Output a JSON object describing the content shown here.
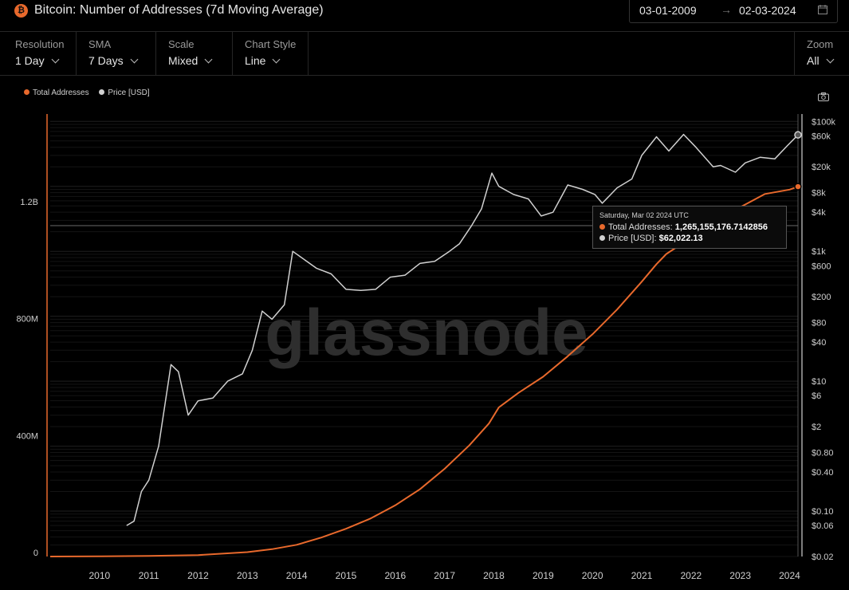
{
  "header": {
    "title": "Bitcoin: Number of Addresses (7d Moving Average)",
    "date_start": "03-01-2009",
    "date_arrow": "→",
    "date_end": "02-03-2024"
  },
  "controls": {
    "resolution": {
      "label": "Resolution",
      "value": "1 Day"
    },
    "sma": {
      "label": "SMA",
      "value": "7 Days"
    },
    "scale": {
      "label": "Scale",
      "value": "Mixed"
    },
    "chart_style": {
      "label": "Chart Style",
      "value": "Line"
    },
    "zoom": {
      "label": "Zoom",
      "value": "All"
    }
  },
  "legend": [
    {
      "label": "Total Addresses",
      "color": "#e8692c"
    },
    {
      "label": "Price [USD]",
      "color": "#d0d0d0"
    }
  ],
  "watermark": "glassnode",
  "tooltip": {
    "date": "Saturday, Mar 02 2024 UTC",
    "series1_label": "Total Addresses:",
    "series1_value": "1,265,155,176.7142856",
    "series2_label": "Price [USD]:",
    "series2_value": "$62,022.13"
  },
  "chart_data": {
    "type": "line",
    "title": "Bitcoin: Number of Addresses (7d Moving Average)",
    "x_ticks": [
      "2010",
      "2011",
      "2012",
      "2013",
      "2014",
      "2015",
      "2016",
      "2017",
      "2018",
      "2019",
      "2020",
      "2021",
      "2022",
      "2023",
      "2024"
    ],
    "xlim": [
      2009.0,
      2024.17
    ],
    "left_axis": {
      "ticks": [
        0,
        400000000,
        800000000,
        1200000000
      ],
      "tick_labels": [
        "0",
        "400M",
        "800M",
        "1.2B"
      ],
      "ylim": [
        0,
        1500000000
      ],
      "scale": "linear"
    },
    "right_axis": {
      "ticks": [
        0.02,
        0.06,
        0.1,
        0.4,
        0.8,
        2,
        6,
        10,
        40,
        80,
        200,
        600,
        1000,
        4000,
        8000,
        20000,
        60000,
        100000
      ],
      "tick_labels": [
        "$0.02",
        "$0.06",
        "$0.10",
        "$0.40",
        "$0.80",
        "$2",
        "$6",
        "$10",
        "$40",
        "$80",
        "$200",
        "$600",
        "$1k",
        "$4k",
        "$8k",
        "$20k",
        "$60k",
        "$100k"
      ],
      "ylim": [
        0.02,
        130000
      ],
      "scale": "log"
    },
    "grid": true,
    "legend_position": "top-left",
    "series": [
      {
        "name": "Total Addresses",
        "axis": "left",
        "color": "#e8692c",
        "x": [
          2009.0,
          2010.0,
          2011.0,
          2012.0,
          2013.0,
          2013.5,
          2014.0,
          2014.5,
          2015.0,
          2015.5,
          2016.0,
          2016.5,
          2017.0,
          2017.5,
          2017.9,
          2018.1,
          2018.5,
          2019.0,
          2019.5,
          2020.0,
          2020.5,
          2021.0,
          2021.3,
          2021.5,
          2022.0,
          2022.5,
          2023.0,
          2023.5,
          2024.0,
          2024.17
        ],
        "y": [
          0,
          600000,
          2000000,
          5000000,
          15000000,
          25000000,
          40000000,
          65000000,
          95000000,
          130000000,
          175000000,
          230000000,
          300000000,
          380000000,
          455000000,
          510000000,
          560000000,
          615000000,
          685000000,
          760000000,
          845000000,
          940000000,
          1000000000,
          1035000000,
          1090000000,
          1145000000,
          1195000000,
          1240000000,
          1255000000,
          1265155176.71
        ]
      },
      {
        "name": "Price [USD]",
        "axis": "right",
        "color": "#d0d0d0",
        "x": [
          2010.55,
          2010.7,
          2010.85,
          2011.0,
          2011.2,
          2011.45,
          2011.6,
          2011.8,
          2012.0,
          2012.3,
          2012.6,
          2012.9,
          2013.1,
          2013.3,
          2013.5,
          2013.75,
          2013.92,
          2014.1,
          2014.4,
          2014.7,
          2015.0,
          2015.3,
          2015.6,
          2015.9,
          2016.2,
          2016.5,
          2016.8,
          2017.1,
          2017.3,
          2017.55,
          2017.75,
          2017.96,
          2018.1,
          2018.4,
          2018.7,
          2018.96,
          2019.2,
          2019.5,
          2019.8,
          2020.05,
          2020.2,
          2020.5,
          2020.8,
          2021.0,
          2021.3,
          2021.55,
          2021.85,
          2022.1,
          2022.45,
          2022.6,
          2022.9,
          2023.1,
          2023.4,
          2023.7,
          2023.95,
          2024.17
        ],
        "y": [
          0.06,
          0.07,
          0.2,
          0.3,
          1.0,
          18,
          14,
          3,
          5,
          5.5,
          10,
          13,
          30,
          120,
          90,
          150,
          1000,
          800,
          550,
          450,
          260,
          250,
          260,
          400,
          430,
          650,
          700,
          1000,
          1300,
          2500,
          4500,
          16000,
          10000,
          7500,
          6400,
          3500,
          4000,
          10500,
          9000,
          7500,
          5500,
          9500,
          13000,
          30000,
          58000,
          35000,
          63000,
          40000,
          20000,
          21000,
          16500,
          23000,
          28000,
          26500,
          42000,
          62022.13
        ]
      }
    ]
  }
}
